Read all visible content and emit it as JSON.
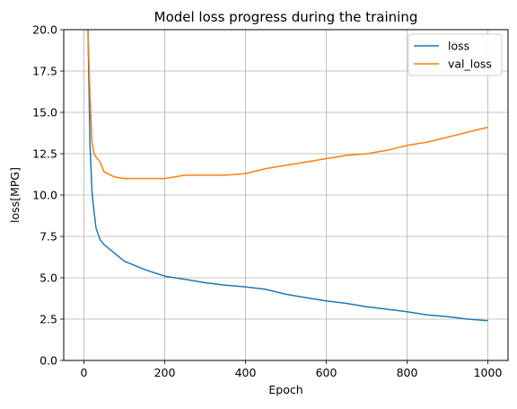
{
  "chart_data": {
    "type": "line",
    "title": "Model loss progress during the training",
    "xlabel": "Epoch",
    "ylabel": "loss[MPG]",
    "xlim": [
      -50,
      1050
    ],
    "ylim": [
      0,
      20
    ],
    "xticks": [
      0,
      200,
      400,
      600,
      800,
      1000
    ],
    "yticks": [
      0.0,
      2.5,
      5.0,
      7.5,
      10.0,
      12.5,
      15.0,
      17.5,
      20.0
    ],
    "xtick_labels": [
      "0",
      "200",
      "400",
      "600",
      "800",
      "1000"
    ],
    "ytick_labels": [
      "0.0",
      "2.5",
      "5.0",
      "7.5",
      "10.0",
      "12.5",
      "15.0",
      "17.5",
      "20.0"
    ],
    "grid": true,
    "legend_position": "top-right",
    "colors": {
      "loss": "#1f77b4",
      "val_loss": "#ff7f0e"
    },
    "series": [
      {
        "name": "loss",
        "x": [
          0,
          10,
          15,
          20,
          25,
          30,
          40,
          50,
          75,
          100,
          150,
          200,
          250,
          300,
          350,
          400,
          450,
          500,
          550,
          600,
          650,
          700,
          750,
          800,
          850,
          900,
          950,
          1000
        ],
        "values": [
          24,
          20,
          13,
          10.2,
          9.0,
          8.0,
          7.3,
          7.0,
          6.5,
          6.0,
          5.5,
          5.1,
          4.9,
          4.7,
          4.55,
          4.45,
          4.3,
          4.0,
          3.8,
          3.6,
          3.45,
          3.25,
          3.1,
          2.95,
          2.75,
          2.65,
          2.5,
          2.4
        ]
      },
      {
        "name": "val_loss",
        "x": [
          0,
          10,
          15,
          20,
          25,
          30,
          40,
          50,
          75,
          100,
          150,
          200,
          250,
          300,
          350,
          400,
          450,
          500,
          550,
          600,
          650,
          700,
          750,
          800,
          850,
          900,
          950,
          1000
        ],
        "values": [
          24,
          20,
          16,
          13.2,
          12.5,
          12.3,
          12.0,
          11.4,
          11.1,
          11.0,
          11.0,
          11.0,
          11.2,
          11.2,
          11.2,
          11.3,
          11.6,
          11.8,
          12.0,
          12.2,
          12.4,
          12.5,
          12.7,
          13.0,
          13.2,
          13.5,
          13.8,
          14.1
        ]
      }
    ]
  }
}
